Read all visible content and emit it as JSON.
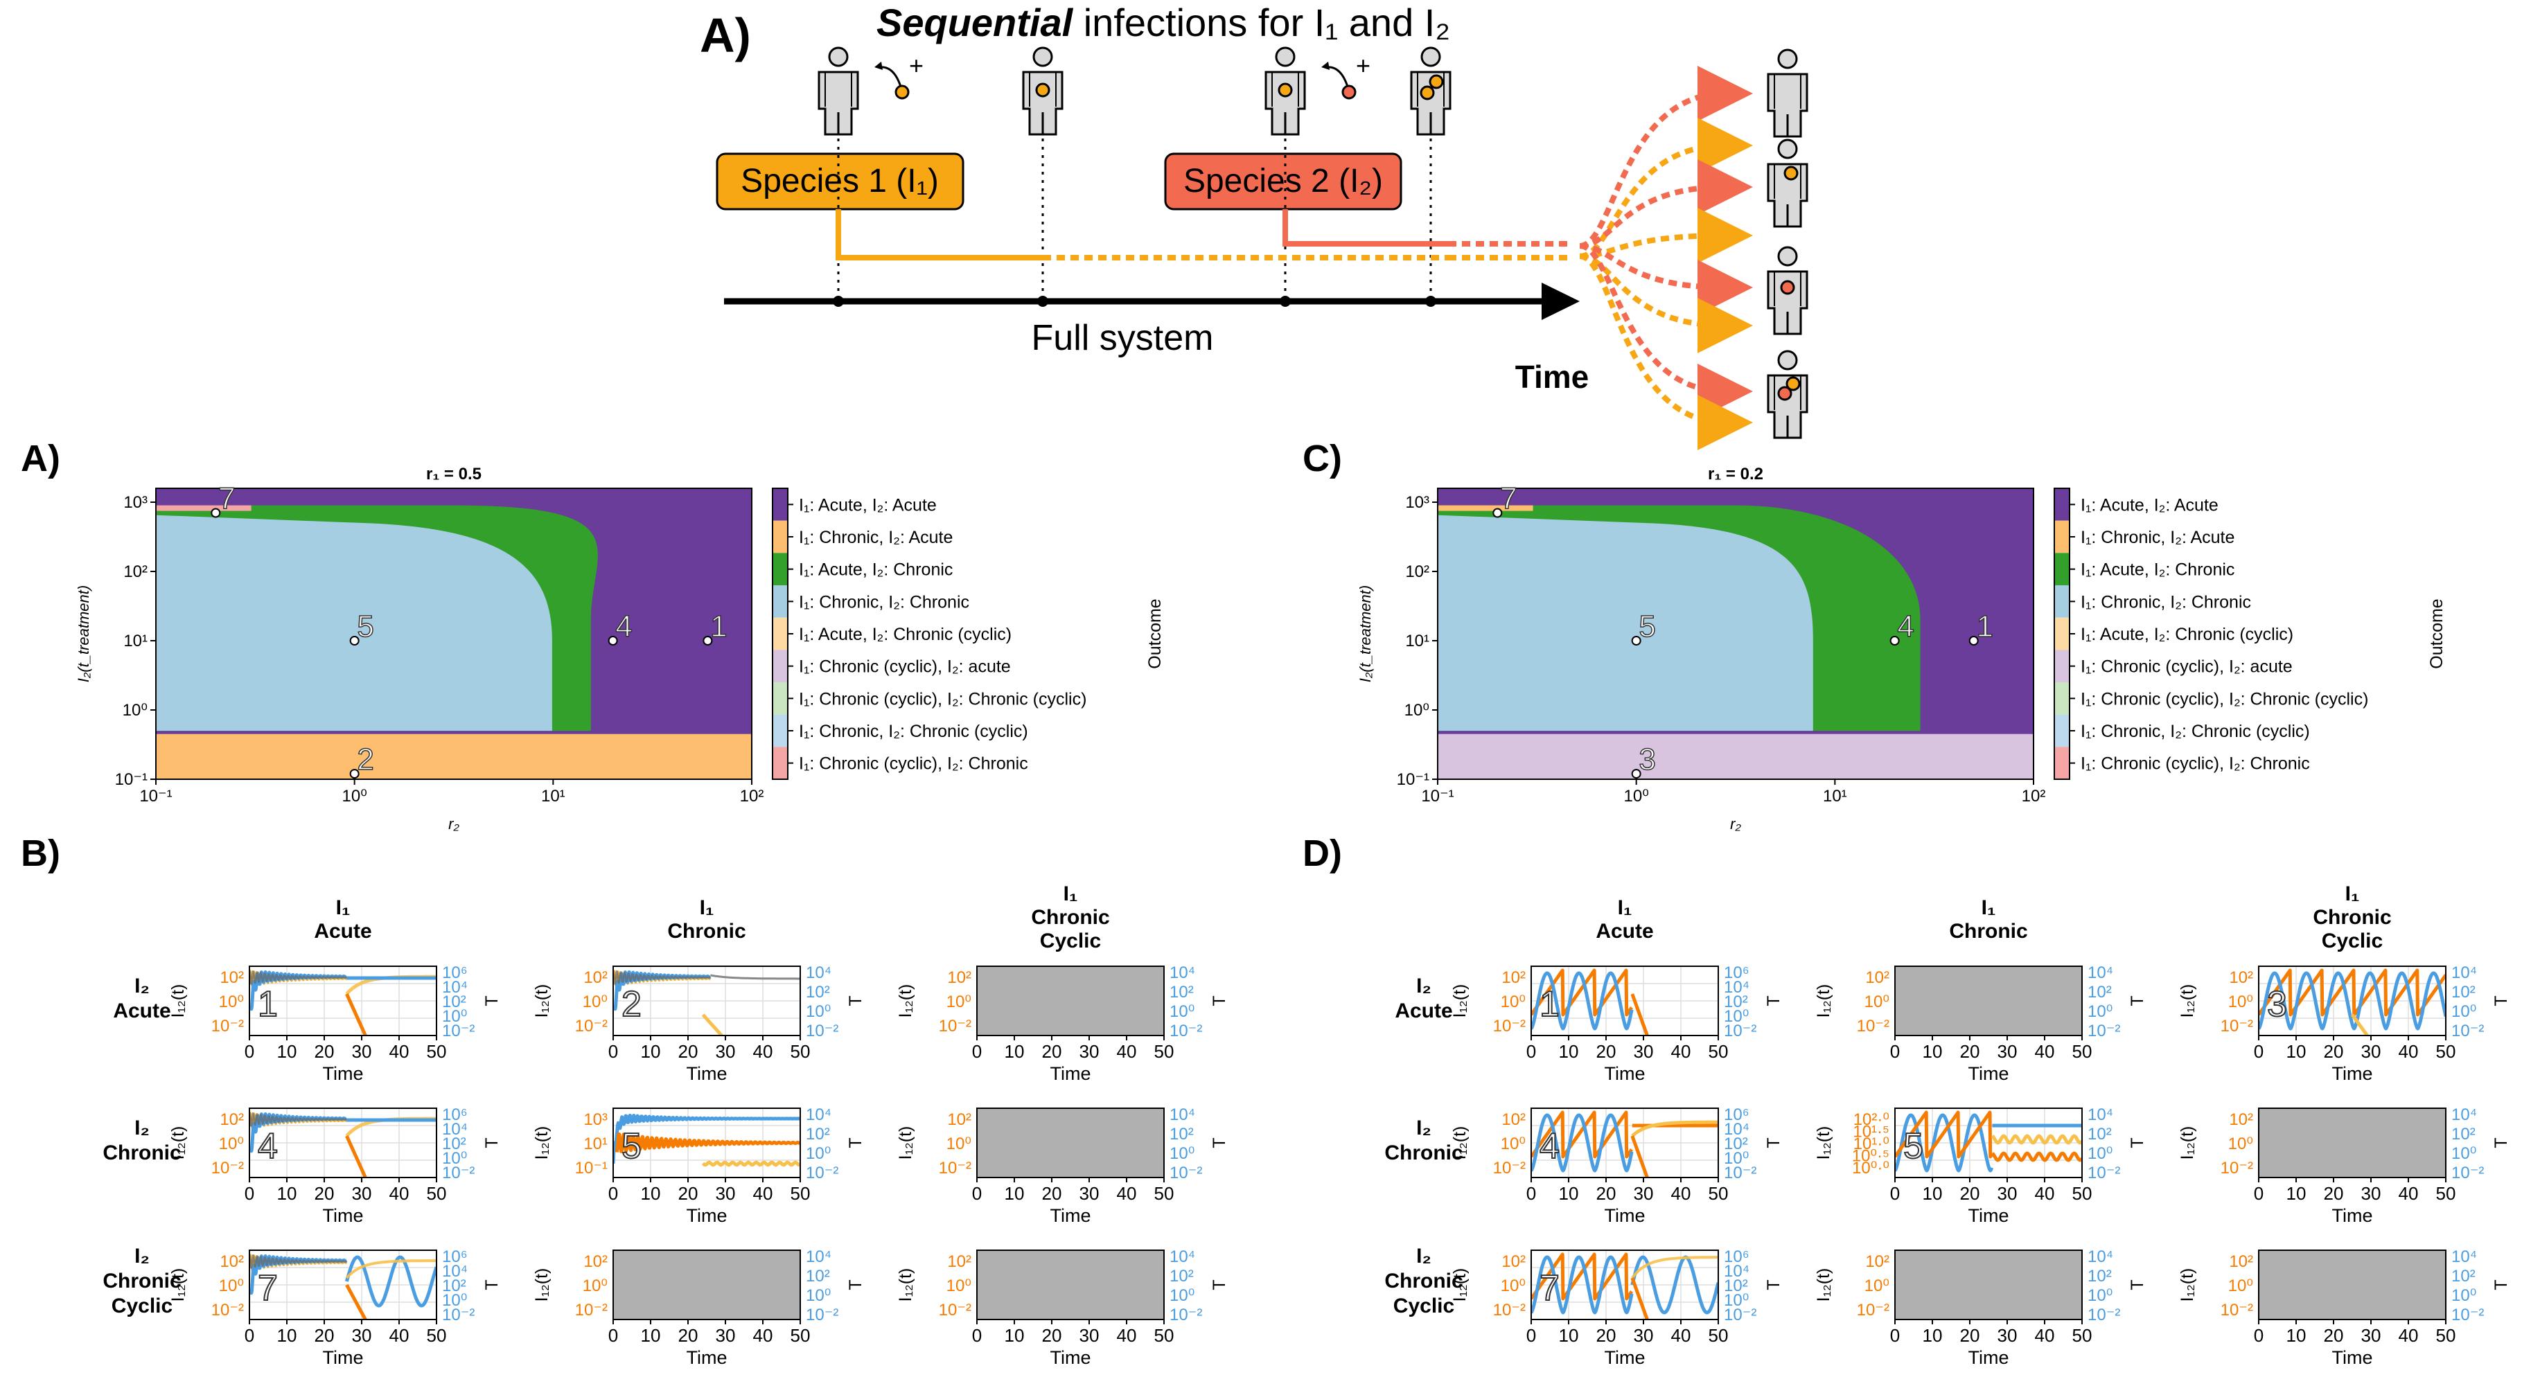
{
  "schematic": {
    "panel_letter": "A)",
    "title_italic": "Sequential",
    "title_rest": " infections for I₁ and I₂",
    "species1": "Species 1 (I₁)",
    "species2": "Species 2 (I₂)",
    "plus": "+",
    "axis_label": "Full system",
    "time_label": "Time"
  },
  "colors": {
    "acute_acute": "#6a3d9a",
    "chronic_acute": "#fdbf6f",
    "acute_chronic": "#33a02c",
    "chronic_chronic": "#a6cee3",
    "acute_chronic_cyclic": "#fdd9a3",
    "cyclic_acute": "#d9c4e0",
    "cyclic_cyclic": "#c9e6c0",
    "chronic_cyclic": "#bcd9ee",
    "cyclic_chronic": "#f4a6a6",
    "species1": "#f7a614",
    "species2": "#f26a4f",
    "orange_line": "#f57c00",
    "blue_line": "#4a9de0",
    "empty_panel": "#b0b0b0"
  },
  "maps": [
    {
      "panel_letter": "A)",
      "title": "r₁ = 0.5",
      "xlabel": "r₂",
      "ylabel": "I₂(t_treatment)",
      "xticks": [
        "10⁻¹",
        "10⁰",
        "10¹",
        "10²"
      ],
      "yticks": [
        "10³",
        "10²",
        "10¹",
        "10⁰",
        "10⁻¹"
      ],
      "points": [
        {
          "label": "7",
          "x": 0.2,
          "y": 700
        },
        {
          "label": "5",
          "x": 1.0,
          "y": 10
        },
        {
          "label": "4",
          "x": 20,
          "y": 10
        },
        {
          "label": "1",
          "x": 60,
          "y": 10
        },
        {
          "label": "2",
          "x": 1.0,
          "y": 0.12
        }
      ]
    },
    {
      "panel_letter": "C)",
      "title": "r₁ = 0.2",
      "xlabel": "r₂",
      "ylabel": "I₂(t_treatment)",
      "xticks": [
        "10⁻¹",
        "10⁰",
        "10¹",
        "10²"
      ],
      "yticks": [
        "10³",
        "10²",
        "10¹",
        "10⁰",
        "10⁻¹"
      ],
      "points": [
        {
          "label": "7",
          "x": 0.2,
          "y": 700
        },
        {
          "label": "5",
          "x": 1.0,
          "y": 10
        },
        {
          "label": "4",
          "x": 20,
          "y": 10
        },
        {
          "label": "1",
          "x": 50,
          "y": 10
        },
        {
          "label": "3",
          "x": 1.0,
          "y": 0.12
        }
      ]
    }
  ],
  "legend_title": "Outcome",
  "legend": [
    {
      "label": "I₁: Acute, I₂: Acute",
      "color": "#6a3d9a"
    },
    {
      "label": "I₁: Chronic, I₂: Acute",
      "color": "#fdbf6f"
    },
    {
      "label": "I₁: Acute, I₂: Chronic",
      "color": "#33a02c"
    },
    {
      "label": "I₁: Chronic, I₂: Chronic",
      "color": "#a6cee3"
    },
    {
      "label": "I₁: Acute, I₂: Chronic (cyclic)",
      "color": "#fdd9a3"
    },
    {
      "label": "I₁: Chronic (cyclic), I₂: acute",
      "color": "#d9c4e0"
    },
    {
      "label": "I₁: Chronic (cyclic), I₂: Chronic (cyclic)",
      "color": "#c9e6c0"
    },
    {
      "label": "I₁: Chronic, I₂: Chronic (cyclic)",
      "color": "#bcd9ee"
    },
    {
      "label": "I₁: Chronic (cyclic), I₂: Chronic",
      "color": "#f4a6a6"
    }
  ],
  "grids": [
    {
      "panel_letter": "B)",
      "col_headers": [
        [
          "I₁",
          "Acute"
        ],
        [
          "I₁",
          "Chronic"
        ],
        [
          "I₁",
          "Chronic",
          "Cyclic"
        ]
      ],
      "row_headers": [
        [
          "I₂",
          "Acute"
        ],
        [
          "I₂",
          "Chronic"
        ],
        [
          "I₂",
          "Chronic",
          "Cyclic"
        ]
      ],
      "cells": [
        [
          {
            "label": "1",
            "mode": "damped"
          },
          {
            "label": "2",
            "mode": "damped2"
          },
          {
            "label": "",
            "mode": "empty"
          }
        ],
        [
          {
            "label": "4",
            "mode": "damped"
          },
          {
            "label": "5",
            "mode": "chronic5"
          },
          {
            "label": "",
            "mode": "empty"
          }
        ],
        [
          {
            "label": "7",
            "mode": "cyc7"
          },
          {
            "label": "",
            "mode": "empty"
          },
          {
            "label": "",
            "mode": "empty"
          }
        ]
      ]
    },
    {
      "panel_letter": "D)",
      "col_headers": [
        [
          "I₁",
          "Acute"
        ],
        [
          "I₁",
          "Chronic"
        ],
        [
          "I₁",
          "Chronic",
          "Cyclic"
        ]
      ],
      "row_headers": [
        [
          "I₂",
          "Acute"
        ],
        [
          "I₂",
          "Chronic"
        ],
        [
          "I₂",
          "Chronic",
          "Cyclic"
        ]
      ],
      "cells": [
        [
          {
            "label": "1",
            "mode": "cycacute"
          },
          {
            "label": "",
            "mode": "empty"
          },
          {
            "label": "3",
            "mode": "cyc3"
          }
        ],
        [
          {
            "label": "4",
            "mode": "cycchronic"
          },
          {
            "label": "5",
            "mode": "cyc5"
          },
          {
            "label": "",
            "mode": "empty"
          }
        ],
        [
          {
            "label": "7",
            "mode": "cyc7d"
          },
          {
            "label": "",
            "mode": "empty"
          },
          {
            "label": "",
            "mode": "empty"
          }
        ]
      ]
    }
  ],
  "small_axis": {
    "xticks": [
      "0",
      "10",
      "20",
      "30",
      "40",
      "50"
    ],
    "xlabel": "Time",
    "ylabel_left": "I₁₂(t)",
    "ylabel_right": "T",
    "yticks_left": [
      "10²",
      "10⁰",
      "10⁻²"
    ],
    "yticks_left_5": [
      "10³",
      "10¹",
      "10⁻¹"
    ],
    "yticks_left_5d": [
      "10²·⁰",
      "10¹·⁵",
      "10¹·⁰",
      "10⁰·⁵",
      "10⁰·⁰"
    ],
    "yticks_right6": [
      "10⁶",
      "10⁴",
      "10²",
      "10⁰",
      "10⁻²"
    ],
    "yticks_right4": [
      "10⁴",
      "10²",
      "10⁰",
      "10⁻²"
    ]
  }
}
